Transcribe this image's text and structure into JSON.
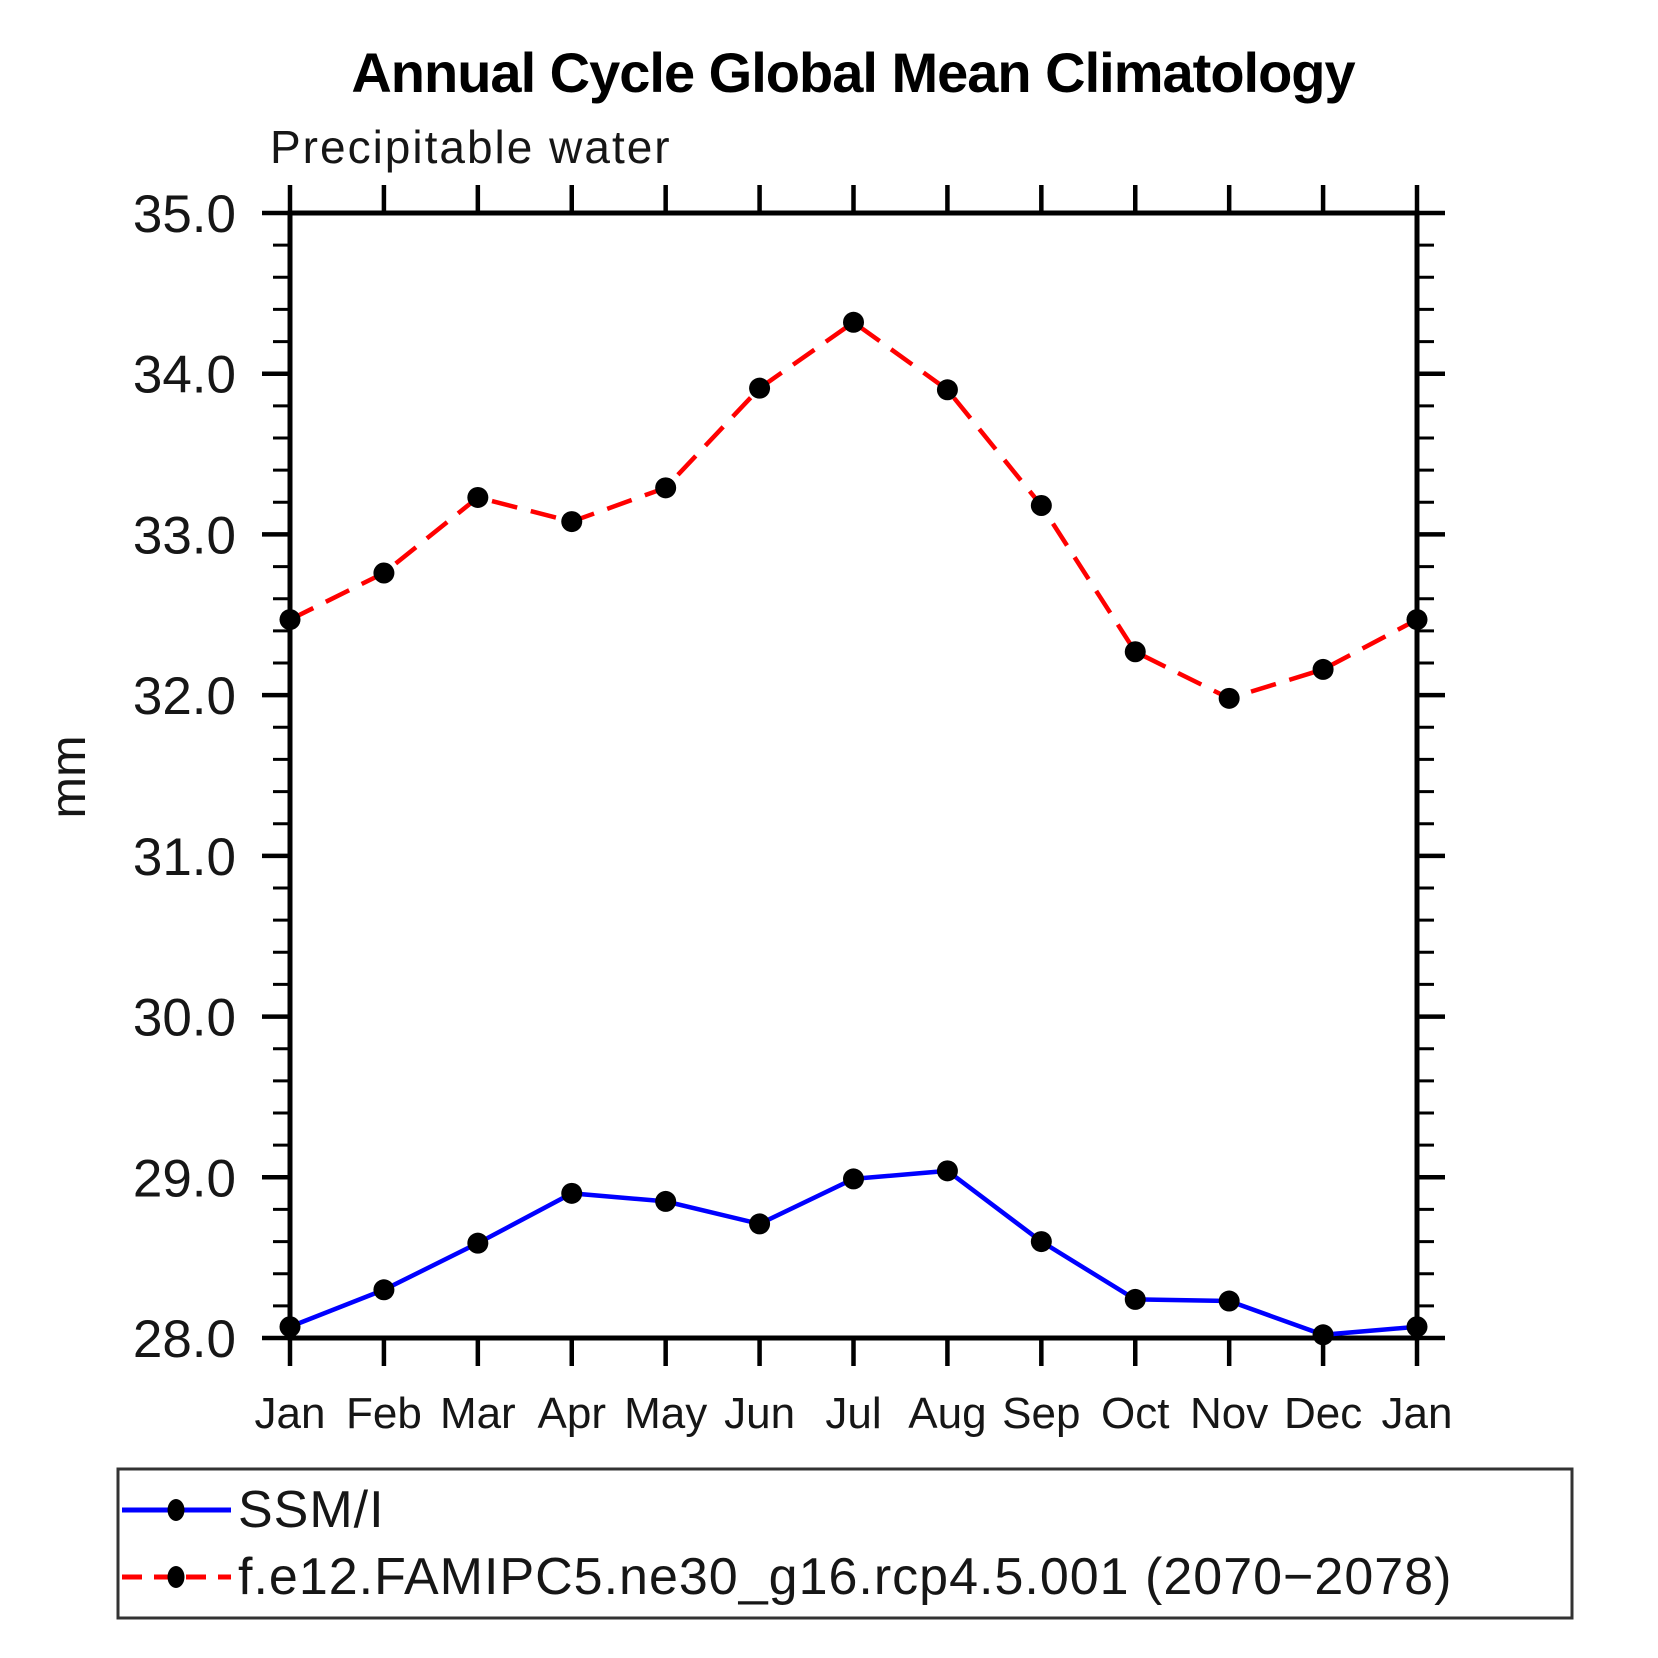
{
  "chart_data": {
    "type": "line",
    "title": "Annual Cycle Global Mean Climatology",
    "subtitle": "Precipitable water",
    "ylabel": "mm",
    "categories": [
      "Jan",
      "Feb",
      "Mar",
      "Apr",
      "May",
      "Jun",
      "Jul",
      "Aug",
      "Sep",
      "Oct",
      "Nov",
      "Dec",
      "Jan"
    ],
    "series": [
      {
        "name": "SSM/I",
        "color": "#0000ff",
        "line_style": "solid",
        "marker": "filled-black-dot",
        "values": [
          28.07,
          28.3,
          28.59,
          28.9,
          28.85,
          28.71,
          28.99,
          29.04,
          28.6,
          28.24,
          28.23,
          28.02,
          28.07
        ]
      },
      {
        "name": "f.e12.FAMIPC5.ne30_g16.rcp4.5.001 (2070−2078)",
        "color": "#ff0000",
        "line_style": "dashed",
        "marker": "filled-black-dot",
        "values": [
          32.47,
          32.76,
          33.23,
          33.08,
          33.29,
          33.91,
          34.32,
          33.9,
          33.18,
          32.27,
          31.98,
          32.16,
          32.47
        ]
      }
    ],
    "ylim": [
      28.0,
      35.0
    ],
    "ytick_major_step": 1.0,
    "ytick_minor_step": 0.2,
    "ytick_labels": [
      "35.0",
      "34.0",
      "33.0",
      "32.0",
      "31.0",
      "30.0",
      "29.0",
      "28.0"
    ],
    "grid": false,
    "legend_position": "bottom-left-box",
    "axis_color": "#000000",
    "marker_color": "#000000"
  }
}
